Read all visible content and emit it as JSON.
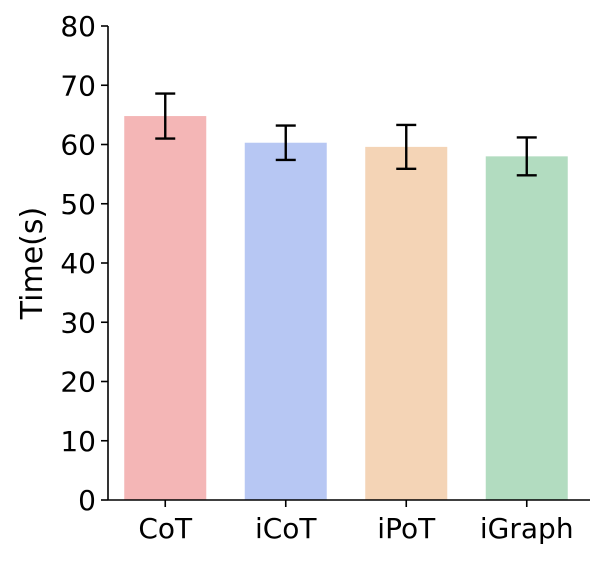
{
  "chart_data": {
    "type": "bar",
    "title": "",
    "xlabel": "",
    "ylabel": "Time(s)",
    "ylim": [
      0,
      80
    ],
    "yticks": [
      0,
      10,
      20,
      30,
      40,
      50,
      60,
      70,
      80
    ],
    "categories": [
      "CoT",
      "iCoT",
      "iPoT",
      "iGraph"
    ],
    "values": [
      64.8,
      60.3,
      59.6,
      58.0
    ],
    "error_low": [
      61.0,
      57.4,
      55.9,
      54.8
    ],
    "error_high": [
      68.6,
      63.2,
      63.3,
      61.2
    ],
    "colors": [
      "#f4b6b6",
      "#b7c7f3",
      "#f4d4b6",
      "#b2dcc0"
    ],
    "grid": false,
    "legend": "none"
  }
}
